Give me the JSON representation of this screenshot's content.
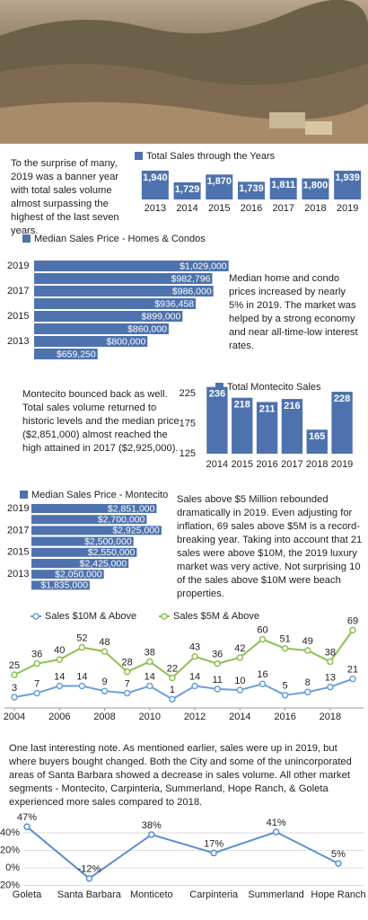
{
  "texts": [
    "To the surprise of many, 2019 was a banner year with total sales volume almost surpassing the highest of the last seven years.",
    "Median home and condo prices increased by nearly 5% in 2019. The market was helped by a strong economy and near all-time-low interest rates.",
    "Montecito bounced back as well. Total sales volume returned to historic levels and the median price ($2,851,000) almost reached the high attained in 2017 ($2,925,000).",
    "Sales above $5 Million rebounded dramatically in 2019. Even adjusting for inflation, 69 sales above $5M is a record-breaking year. Taking into account that 21 sales were above $10M, the 2019 luxury market was very active. Not surprising 10 of the sales above $10M were beach properties.",
    "One last interesting note. As mentioned earlier, sales were up in 2019, but where buyers bought changed. Both the City and some of the unincorporated areas of Santa Barbara showed a decrease in sales volume. All other market segments - Montecito, Carpinteria, Summerland, Hope Ranch, & Goleta experienced more sales compared to 2018."
  ],
  "chart_data": [
    {
      "type": "bar",
      "title": "Total Sales through the Years",
      "categories": [
        "2013",
        "2014",
        "2015",
        "2016",
        "2017",
        "2018",
        "2019"
      ],
      "values": [
        1940,
        1729,
        1870,
        1739,
        1811,
        1800,
        1939
      ],
      "value_labels": [
        "1,940",
        "1,729",
        "1,870",
        "1,739",
        "1,811",
        "1,800",
        "1,939"
      ],
      "color": "#4d72ad",
      "ylim": [
        1420,
        1960
      ]
    },
    {
      "type": "barh",
      "title": "Median Sales Price - Homes & Condos",
      "categories": [
        "2019",
        null,
        "2017",
        null,
        "2015",
        null,
        "2013",
        null
      ],
      "values": [
        1029000,
        982796,
        986000,
        936458,
        899000,
        860000,
        800000,
        659250
      ],
      "value_labels": [
        "$1,029,000",
        "$982,796",
        "$986,000",
        "$936,458",
        "$899,000",
        "$860,000",
        "$800,000",
        "$659,250"
      ],
      "color": "#4d72ad",
      "xlim": [
        480000,
        1040000
      ]
    },
    {
      "type": "bar",
      "title": "Total Montecito Sales",
      "categories": [
        "2014",
        "2015",
        "2016",
        "2017",
        "2018",
        "2019"
      ],
      "values": [
        236,
        218,
        211,
        216,
        165,
        228
      ],
      "color": "#4d72ad",
      "ylim": [
        125,
        240
      ],
      "yticks": [
        125,
        175,
        225
      ]
    },
    {
      "type": "barh",
      "title": "Median Sales Price - Montecito",
      "categories": [
        "2019",
        null,
        "2017",
        null,
        "2015",
        null,
        "2013",
        null
      ],
      "values": [
        2851000,
        2700000,
        2925000,
        2500000,
        2550000,
        2425000,
        2050000,
        1835000
      ],
      "value_labels": [
        "$2,851,000",
        "$2,700,000",
        "$2,925,000",
        "$2,500,000",
        "$2,550,000",
        "$2,425,000",
        "$2,050,000",
        "$1,835,000"
      ],
      "color": "#4d72ad",
      "xlim": [
        950000,
        2940000
      ]
    },
    {
      "type": "line",
      "x": [
        2004,
        2005,
        2006,
        2007,
        2008,
        2009,
        2010,
        2011,
        2012,
        2013,
        2014,
        2015,
        2016,
        2017,
        2018,
        2019
      ],
      "series": [
        {
          "name": "Sales $10M & Above",
          "color": "#6a9fd8",
          "values": [
            3,
            7,
            14,
            14,
            9,
            7,
            14,
            1,
            14,
            11,
            10,
            16,
            5,
            8,
            13,
            21
          ]
        },
        {
          "name": "Sales $5M & Above",
          "color": "#8cc152",
          "values": [
            25,
            36,
            40,
            52,
            48,
            28,
            38,
            22,
            43,
            36,
            42,
            60,
            51,
            49,
            38,
            69
          ]
        }
      ],
      "xlim": [
        2004,
        2019
      ],
      "xticks": [
        2004,
        2006,
        2008,
        2010,
        2012,
        2014,
        2016,
        2018
      ],
      "ylim": [
        -5,
        72
      ]
    },
    {
      "type": "line",
      "categories": [
        "Goleta",
        "Santa Barbara",
        "Monticeto",
        "Carpinteria",
        "Summerland",
        "Hope Ranch"
      ],
      "values": [
        47,
        -12,
        38,
        17,
        41,
        5
      ],
      "value_labels": [
        "47%",
        "-12%",
        "38%",
        "17%",
        "41%",
        "5%"
      ],
      "color": "#5b8fd0",
      "ylim": [
        -20,
        50
      ],
      "yticks": [
        {
          "value": -20,
          "label": "-20%"
        },
        {
          "value": 0,
          "label": "0%"
        },
        {
          "value": 20,
          "label": "20%"
        },
        {
          "value": 40,
          "label": "40%"
        }
      ],
      "grid": true
    }
  ]
}
